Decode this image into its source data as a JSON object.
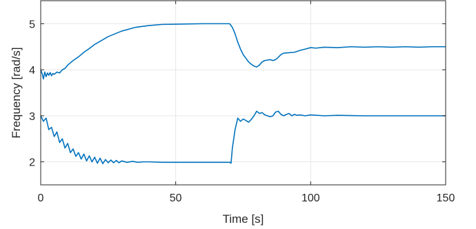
{
  "chart_data": {
    "type": "line",
    "title": "",
    "xlabel": "Time [s]",
    "ylabel": "Frequency [rad/s]",
    "xlim": [
      0,
      150
    ],
    "ylim": [
      1.5,
      5.5
    ],
    "xticks": [
      0,
      50,
      100,
      150
    ],
    "yticks": [
      2,
      3,
      4,
      5
    ],
    "xtick_labels": [
      "0",
      "50",
      "100",
      "150"
    ],
    "ytick_labels": [
      "2",
      "3",
      "4",
      "5"
    ],
    "grid": true,
    "legend": "none",
    "colors": {
      "line": "#0072BD",
      "grid": "#e6e6e6",
      "axis": "#262626"
    },
    "series": [
      {
        "x": [
          0,
          0.5,
          1,
          1.5,
          2,
          2.5,
          3,
          3.5,
          4,
          4.5,
          5,
          6,
          7,
          8,
          9,
          10,
          12,
          14,
          16,
          18,
          20,
          25,
          30,
          35,
          40,
          45,
          50,
          55,
          60,
          65,
          70,
          71,
          72,
          73,
          74,
          75,
          76,
          77,
          78,
          79,
          80,
          81,
          82,
          83,
          84,
          85,
          86,
          87,
          88,
          89,
          90,
          92,
          94,
          96,
          98,
          100,
          102,
          105,
          110,
          115,
          120,
          125,
          130,
          135,
          140,
          145,
          150
        ],
        "y": [
          4.0,
          3.92,
          3.8,
          3.95,
          3.85,
          3.93,
          3.88,
          3.94,
          3.87,
          3.92,
          3.9,
          3.95,
          3.93,
          4.0,
          4.03,
          4.1,
          4.2,
          4.28,
          4.38,
          4.46,
          4.55,
          4.72,
          4.84,
          4.92,
          4.96,
          4.985,
          4.99,
          4.995,
          5.0,
          5.0,
          5.0,
          4.92,
          4.78,
          4.6,
          4.45,
          4.33,
          4.25,
          4.17,
          4.12,
          4.08,
          4.06,
          4.1,
          4.17,
          4.2,
          4.21,
          4.22,
          4.2,
          4.22,
          4.27,
          4.33,
          4.36,
          4.37,
          4.38,
          4.42,
          4.45,
          4.48,
          4.47,
          4.49,
          4.48,
          4.5,
          4.49,
          4.5,
          4.49,
          4.5,
          4.49,
          4.5,
          4.5
        ]
      },
      {
        "x": [
          0,
          1,
          2,
          3,
          4,
          5,
          6,
          7,
          8,
          9,
          10,
          11,
          12,
          13,
          14,
          15,
          16,
          17,
          18,
          19,
          20,
          21,
          22,
          23,
          24,
          25,
          26,
          27,
          28,
          29,
          30,
          32,
          34,
          36,
          38,
          40,
          45,
          50,
          55,
          60,
          65,
          69,
          70,
          70.5,
          71,
          72,
          73,
          74,
          75,
          76,
          77,
          78,
          79,
          80,
          81,
          82,
          83,
          84,
          85,
          86,
          87,
          88,
          89,
          90,
          91,
          92,
          93,
          94,
          95,
          96,
          98,
          100,
          105,
          110,
          120,
          130,
          140,
          150
        ],
        "y": [
          3.0,
          2.88,
          2.95,
          2.7,
          2.75,
          2.55,
          2.65,
          2.42,
          2.5,
          2.3,
          2.4,
          2.2,
          2.28,
          2.12,
          2.2,
          2.06,
          2.17,
          2.02,
          2.13,
          2.0,
          2.1,
          1.97,
          2.08,
          1.96,
          2.05,
          1.98,
          2.04,
          1.98,
          2.03,
          1.98,
          2.02,
          1.99,
          2.01,
          1.99,
          2.0,
          2.0,
          1.99,
          1.99,
          1.99,
          1.99,
          1.99,
          1.99,
          1.99,
          1.97,
          2.3,
          2.7,
          2.95,
          2.88,
          2.93,
          2.9,
          2.86,
          2.92,
          3.0,
          3.1,
          3.05,
          3.07,
          3.02,
          3.0,
          2.98,
          3.0,
          3.08,
          3.1,
          3.03,
          3.0,
          3.03,
          3.05,
          3.0,
          3.03,
          3.01,
          3.02,
          3.0,
          3.02,
          3.0,
          3.01,
          3.0,
          3.0,
          3.0,
          3.0
        ]
      }
    ]
  }
}
